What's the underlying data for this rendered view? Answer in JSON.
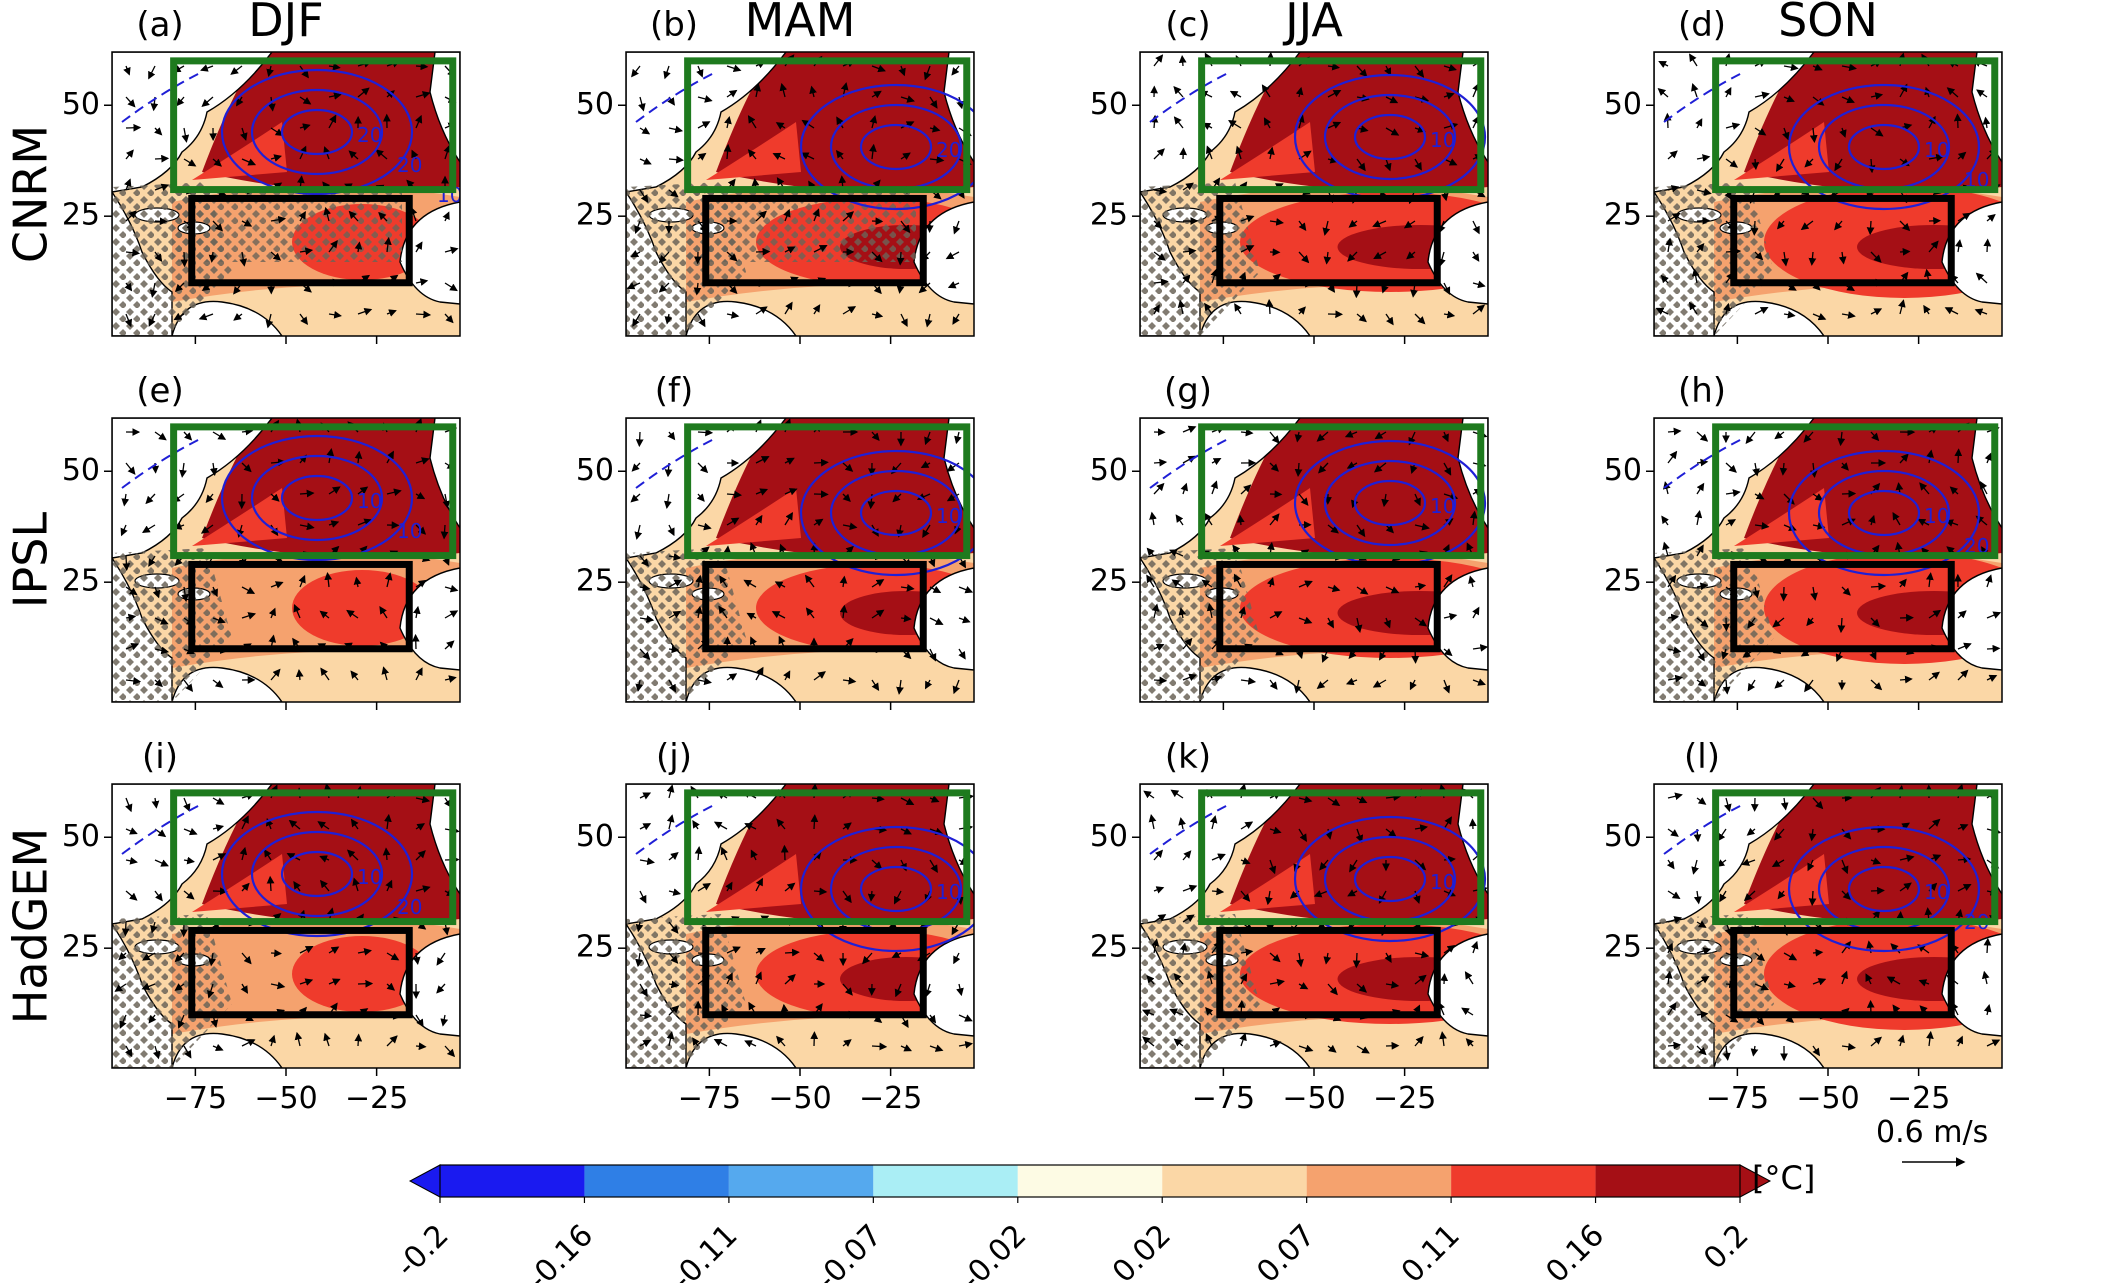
{
  "chart_data": {
    "type": "heatmap",
    "layout": "3x4 panel grid of maps",
    "seasons": [
      "DJF",
      "MAM",
      "JJA",
      "SON"
    ],
    "models": [
      "CNRM",
      "IPSL",
      "HadGEM"
    ],
    "panel_labels": [
      "(a)",
      "(b)",
      "(c)",
      "(d)",
      "(e)",
      "(f)",
      "(g)",
      "(h)",
      "(i)",
      "(j)",
      "(k)",
      "(l)"
    ],
    "x_ticks": [
      -75,
      -50,
      -25
    ],
    "x_tick_labels": [
      "−75",
      "−50",
      "−25"
    ],
    "y_ticks": [
      50,
      25
    ],
    "y_tick_labels": [
      "50",
      "25"
    ],
    "xlim": [
      -98,
      -2
    ],
    "ylim": [
      -2,
      62
    ],
    "regions": [
      {
        "color": "#1e7a1e",
        "lon": [
          -81,
          -4
        ],
        "lat": [
          31,
          60
        ]
      },
      {
        "color": "#000000",
        "lon": [
          -76,
          -16
        ],
        "lat": [
          10,
          29
        ]
      }
    ],
    "colorbar": {
      "unit": "[°C]",
      "tick_labels": [
        "-0.2",
        "-0.16",
        "-0.11",
        "-0.07",
        "-0.02",
        "0.02",
        "0.07",
        "0.11",
        "0.16",
        "0.2"
      ],
      "colors": [
        "#1a1af0",
        "#2f7fe6",
        "#55a9ee",
        "#aaeef5",
        "#fdfbe4",
        "#fbd7a6",
        "#f5a26e",
        "#ef3b2c",
        "#a50f15"
      ],
      "extend": "both"
    },
    "vector_key": {
      "label": "0.6 m/s"
    },
    "contour_labels": {
      "a": [
        "20",
        "20",
        "10"
      ],
      "b": [
        "20",
        "10"
      ],
      "c": [
        "10"
      ],
      "d": [
        "10",
        "10"
      ],
      "e": [
        "10",
        "10"
      ],
      "f": [
        "10"
      ],
      "g": [
        "10"
      ],
      "h": [
        "10",
        "20"
      ],
      "i": [
        "10",
        "20"
      ],
      "j": [
        "10",
        "10"
      ],
      "k": [
        "10"
      ],
      "l": [
        "10",
        "20",
        "10"
      ]
    }
  }
}
